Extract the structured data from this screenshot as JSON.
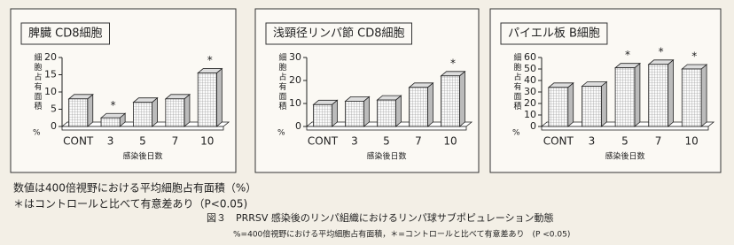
{
  "chart_data": [
    {
      "type": "bar",
      "title": "脾臓 CD8細胞",
      "ylabel": "細胞占有面積",
      "yunit": "%",
      "xlabel": "感染後日数",
      "categories": [
        "CONT",
        "3",
        "5",
        "7",
        "10"
      ],
      "values": [
        8,
        2.5,
        7,
        8,
        15.5
      ],
      "markers": [
        null,
        "*",
        null,
        null,
        "*"
      ],
      "ylim": [
        0,
        20
      ],
      "yticks": [
        0,
        5,
        10,
        15,
        20
      ],
      "color": "#ffffff"
    },
    {
      "type": "bar",
      "title": "浅頸径リンパ節 CD8細胞",
      "ylabel": "細胞占有面積",
      "yunit": "%",
      "xlabel": "感染後日数",
      "categories": [
        "CONT",
        "3",
        "5",
        "7",
        "10"
      ],
      "values": [
        9.5,
        11,
        11.5,
        17,
        22
      ],
      "markers": [
        null,
        null,
        null,
        null,
        "*"
      ],
      "ylim": [
        0,
        30
      ],
      "yticks": [
        0,
        10,
        20,
        30
      ],
      "color": "#ffffff"
    },
    {
      "type": "bar",
      "title": "パイエル板 B細胞",
      "ylabel": "細胞占有面積",
      "yunit": "%",
      "xlabel": "感染後日数",
      "categories": [
        "CONT",
        "3",
        "5",
        "7",
        "10"
      ],
      "values": [
        34,
        35,
        51,
        54,
        50
      ],
      "markers": [
        null,
        null,
        "*",
        "*",
        "*"
      ],
      "ylim": [
        0,
        60
      ],
      "yticks": [
        0,
        10,
        20,
        30,
        40,
        50,
        60
      ],
      "color": "#ffffff"
    }
  ],
  "notes": [
    "数値は400倍視野における平均細胞占有面積（%）",
    "＊はコントロールと比べて有意差あり（P<0.05)"
  ],
  "caption": {
    "title": "図３　PRRSV 感染後のリンパ組織におけるリンパ球サブポピュレーション動態",
    "detail": "%=400倍視野における平均細胞占有面積，＊=コントロールと比べて有意差あり　(P <0.05)"
  }
}
